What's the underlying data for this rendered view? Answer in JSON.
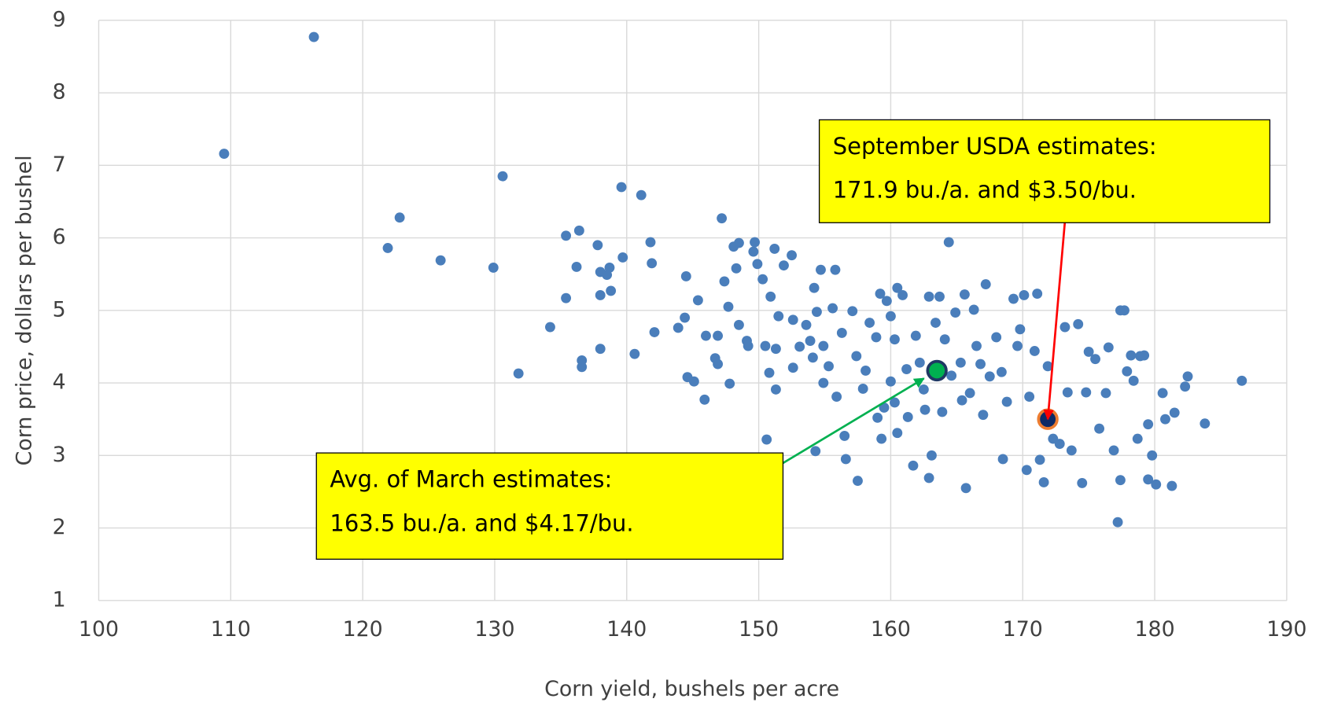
{
  "chart_data": {
    "type": "scatter",
    "x_label": "Corn yield, bushels per acre",
    "y_label": "Corn price, dollars per bushel",
    "xlim": [
      100,
      190
    ],
    "ylim": [
      1,
      9
    ],
    "xticks": [
      100,
      110,
      120,
      130,
      140,
      150,
      160,
      170,
      180,
      190
    ],
    "yticks": [
      1,
      2,
      3,
      4,
      5,
      6,
      7,
      8,
      9
    ],
    "grid": true,
    "series": [
      {
        "color": "#4a7ebb",
        "x": [
          109.5,
          116.3,
          121.9,
          122.8,
          125.9,
          129.9,
          130.6,
          131.8,
          134.2,
          135.4,
          135.4,
          136.4,
          136.2,
          136.6,
          136.6,
          137.8,
          138.0,
          138.0,
          138.0,
          138.5,
          138.7,
          138.8,
          139.7,
          139.6,
          141.1,
          140.6,
          141.8,
          141.9,
          142.1,
          143.9,
          144.5,
          144.4,
          144.6,
          145.1,
          145.4,
          145.9,
          146.0,
          146.9,
          146.7,
          146.9,
          147.2,
          147.4,
          147.7,
          147.8,
          148.1,
          148.5,
          148.3,
          148.5,
          149.1,
          149.2,
          149.7,
          149.6,
          149.9,
          150.3,
          150.5,
          150.6,
          150.8,
          150.9,
          151.3,
          151.3,
          151.5,
          151.2,
          151.9,
          152.5,
          152.6,
          152.6,
          153.1,
          153.6,
          153.9,
          154.2,
          154.3,
          154.1,
          154.4,
          154.7,
          154.9,
          154.9,
          155.3,
          155.6,
          155.8,
          155.9,
          156.3,
          156.5,
          156.6,
          157.1,
          157.5,
          157.4,
          157.9,
          158.1,
          158.4,
          158.9,
          159.0,
          159.3,
          159.5,
          159.2,
          159.7,
          160.0,
          160.0,
          160.3,
          160.3,
          160.5,
          160.5,
          160.9,
          161.2,
          161.3,
          161.7,
          161.9,
          162.2,
          162.5,
          162.6,
          162.9,
          162.9,
          163.1,
          163.4,
          163.7,
          163.9,
          164.1,
          164.4,
          164.6,
          164.9,
          165.3,
          165.4,
          165.6,
          165.7,
          166.0,
          166.3,
          166.5,
          166.8,
          167.0,
          167.2,
          167.5,
          168.0,
          168.4,
          168.5,
          168.8,
          169.3,
          169.6,
          169.8,
          170.1,
          170.3,
          170.5,
          170.9,
          171.1,
          171.3,
          171.6,
          171.9,
          172.3,
          172.8,
          173.2,
          173.4,
          173.7,
          174.2,
          174.5,
          174.8,
          175.0,
          175.5,
          175.8,
          176.3,
          176.5,
          176.9,
          177.2,
          177.4,
          177.4,
          177.7,
          177.9,
          178.2,
          178.4,
          178.7,
          178.9,
          179.2,
          179.5,
          179.5,
          179.8,
          180.1,
          180.6,
          180.8,
          181.3,
          181.5,
          182.3,
          182.5,
          183.8,
          186.6
        ],
        "y": [
          7.16,
          8.77,
          5.86,
          6.28,
          5.69,
          5.59,
          6.85,
          4.13,
          4.77,
          6.03,
          5.17,
          6.1,
          5.6,
          4.31,
          4.22,
          5.9,
          5.53,
          5.21,
          4.47,
          5.49,
          5.59,
          5.27,
          5.73,
          6.7,
          6.59,
          4.4,
          5.94,
          5.65,
          4.7,
          4.76,
          5.47,
          4.9,
          4.08,
          4.02,
          5.14,
          3.77,
          4.65,
          4.65,
          4.34,
          4.26,
          6.27,
          5.4,
          5.05,
          3.99,
          5.88,
          5.93,
          5.58,
          4.8,
          4.58,
          4.51,
          5.94,
          5.81,
          5.64,
          5.43,
          4.51,
          3.22,
          4.14,
          5.19,
          4.47,
          3.91,
          4.92,
          5.85,
          5.62,
          5.76,
          4.87,
          4.21,
          4.5,
          4.8,
          4.58,
          5.31,
          3.06,
          4.35,
          4.98,
          5.56,
          4.51,
          4.0,
          4.23,
          5.03,
          5.56,
          3.81,
          4.69,
          3.27,
          2.95,
          4.99,
          2.65,
          4.37,
          3.92,
          4.17,
          4.83,
          4.63,
          3.52,
          3.23,
          3.66,
          5.23,
          5.13,
          4.92,
          4.02,
          4.6,
          3.73,
          5.31,
          3.31,
          5.21,
          4.19,
          3.53,
          2.86,
          4.65,
          4.28,
          3.91,
          3.63,
          5.19,
          2.69,
          3.0,
          4.83,
          5.19,
          3.6,
          4.6,
          5.94,
          4.1,
          4.97,
          4.28,
          3.76,
          5.22,
          2.55,
          3.86,
          5.01,
          4.51,
          4.26,
          3.56,
          5.36,
          4.09,
          4.63,
          4.15,
          2.95,
          3.74,
          5.16,
          4.51,
          4.74,
          5.21,
          2.8,
          3.81,
          4.44,
          5.23,
          2.94,
          2.63,
          4.23,
          3.23,
          3.16,
          4.77,
          3.87,
          3.07,
          4.81,
          2.62,
          3.87,
          4.43,
          4.33,
          3.37,
          3.86,
          4.49,
          3.07,
          2.08,
          5.0,
          2.66,
          5.0,
          4.16,
          4.38,
          4.03,
          3.23,
          4.37,
          4.38,
          3.43,
          2.67,
          3.0,
          2.6,
          3.86,
          3.5,
          2.58,
          3.59,
          3.95,
          4.09,
          3.44,
          4.03
        ]
      }
    ],
    "annotations": [
      {
        "lines": [
          "September USDA estimates:",
          "171.9 bu./a. and $3.50/bu."
        ],
        "x": 171.9,
        "y": 3.5,
        "box_color": "#ffff00",
        "arrow_color": "#ff0000",
        "point_color": "#0d2a66",
        "point_edge": "#ed7d31"
      },
      {
        "lines": [
          "Avg. of March estimates:",
          "163.5 bu./a. and $4.17/bu."
        ],
        "x": 163.5,
        "y": 4.17,
        "box_color": "#ffff00",
        "arrow_color": "#00b050",
        "point_color": "#00b050",
        "point_edge": "#1f3864"
      }
    ]
  }
}
